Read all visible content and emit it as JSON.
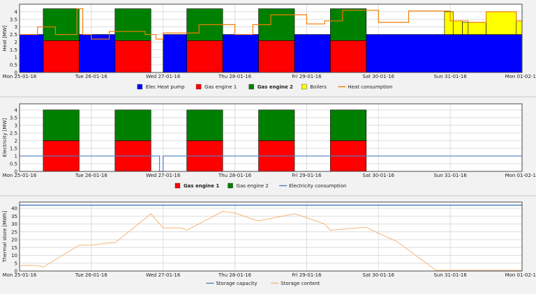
{
  "colors": {
    "elec_heat_pump": "#0000ff",
    "gas_engine_1": "#ff0000",
    "gas_engine_2": "#008000",
    "boilers": "#ffff00",
    "heat_consumption": "#f07d00",
    "electricity_consumption": "#4f7fbf",
    "storage_capacity": "#4f7fbf",
    "storage_content": "#f5b57a"
  },
  "chart_data": [
    {
      "type": "area",
      "ylabel": "Heat [MW]",
      "ylim": [
        0,
        4.5
      ],
      "yticks": [
        "0",
        "0.5",
        "1",
        "1.5",
        "2",
        "2.5",
        "3",
        "3.5",
        "4"
      ],
      "xlim": [
        0,
        7
      ],
      "xticks": [
        {
          "x": 0,
          "label": "Mon 25-01-16"
        },
        {
          "x": 1,
          "label": "Tue 26-01-16"
        },
        {
          "x": 2,
          "label": "Wed 27-01-16"
        },
        {
          "x": 3,
          "label": "Thu 28-01-16"
        },
        {
          "x": 4,
          "label": "Fri 29-01-16"
        },
        {
          "x": 5,
          "label": "Sat 30-01-16"
        },
        {
          "x": 6,
          "label": "Sun 31-01-16"
        },
        {
          "x": 7,
          "label": "Mon 01-02-16"
        }
      ],
      "grid": true,
      "legend_position": "bottom",
      "legend": [
        {
          "label": "Elec Heat pump",
          "key": "elec_heat_pump",
          "marker": "square",
          "bold": false
        },
        {
          "label": "Gas engine 1",
          "key": "gas_engine_1",
          "marker": "square",
          "bold": false
        },
        {
          "label": "Gas engine 2",
          "key": "gas_engine_2",
          "marker": "square",
          "bold": true
        },
        {
          "label": "Boilers",
          "key": "boilers",
          "marker": "square",
          "bold": false
        },
        {
          "label": "Heat consumption",
          "key": "heat_consumption",
          "marker": "line",
          "bold": false
        }
      ],
      "blocks": [
        {
          "series": "Elec Heat pump",
          "color": "elec_heat_pump",
          "x0": 0,
          "x1": 0.33,
          "y0": 0,
          "y1": 2.5
        },
        {
          "series": "Elec Heat pump",
          "color": "elec_heat_pump",
          "x0": 0.83,
          "x1": 1.33,
          "y0": 0,
          "y1": 2.5
        },
        {
          "series": "Elec Heat pump",
          "color": "elec_heat_pump",
          "x0": 2.0,
          "x1": 2.33,
          "y0": 0,
          "y1": 2.5
        },
        {
          "series": "Elec Heat pump",
          "color": "elec_heat_pump",
          "x0": 2.83,
          "x1": 3.33,
          "y0": 0,
          "y1": 2.5
        },
        {
          "series": "Elec Heat pump",
          "color": "elec_heat_pump",
          "x0": 3.83,
          "x1": 4.33,
          "y0": 0,
          "y1": 2.5
        },
        {
          "series": "Elec Heat pump",
          "color": "elec_heat_pump",
          "x0": 4.83,
          "x1": 7.0,
          "y0": 0,
          "y1": 2.5
        },
        {
          "series": "Gas engine 1",
          "color": "gas_engine_1",
          "x0": 0.33,
          "x1": 0.83,
          "y0": 0,
          "y1": 2.1
        },
        {
          "series": "Gas engine 1",
          "color": "gas_engine_1",
          "x0": 1.33,
          "x1": 1.83,
          "y0": 0,
          "y1": 2.1
        },
        {
          "series": "Gas engine 1",
          "color": "gas_engine_1",
          "x0": 2.33,
          "x1": 2.83,
          "y0": 0,
          "y1": 2.1
        },
        {
          "series": "Gas engine 1",
          "color": "gas_engine_1",
          "x0": 3.33,
          "x1": 3.83,
          "y0": 0,
          "y1": 2.1
        },
        {
          "series": "Gas engine 1",
          "color": "gas_engine_1",
          "x0": 4.33,
          "x1": 4.83,
          "y0": 0,
          "y1": 2.1
        },
        {
          "series": "Gas engine 2",
          "color": "gas_engine_2",
          "x0": 0.33,
          "x1": 0.83,
          "y0": 2.1,
          "y1": 4.2
        },
        {
          "series": "Gas engine 2",
          "color": "gas_engine_2",
          "x0": 1.33,
          "x1": 1.83,
          "y0": 2.1,
          "y1": 4.2
        },
        {
          "series": "Gas engine 2",
          "color": "gas_engine_2",
          "x0": 2.33,
          "x1": 2.83,
          "y0": 2.1,
          "y1": 4.2
        },
        {
          "series": "Gas engine 2",
          "color": "gas_engine_2",
          "x0": 3.33,
          "x1": 3.83,
          "y0": 2.1,
          "y1": 4.2
        },
        {
          "series": "Gas engine 2",
          "color": "gas_engine_2",
          "x0": 4.33,
          "x1": 4.83,
          "y0": 2.1,
          "y1": 4.2
        },
        {
          "series": "Boilers",
          "color": "boilers",
          "x0": 5.92,
          "x1": 6.04,
          "y0": 2.5,
          "y1": 4.0
        },
        {
          "series": "Boilers",
          "color": "boilers",
          "x0": 6.04,
          "x1": 6.17,
          "y0": 2.5,
          "y1": 3.4
        },
        {
          "series": "Boilers",
          "color": "boilers",
          "x0": 6.17,
          "x1": 6.25,
          "y0": 2.5,
          "y1": 3.3
        },
        {
          "series": "Boilers",
          "color": "boilers",
          "x0": 6.25,
          "x1": 6.5,
          "y0": 2.5,
          "y1": 3.3
        },
        {
          "series": "Boilers",
          "color": "boilers",
          "x0": 6.5,
          "x1": 6.92,
          "y0": 2.5,
          "y1": 4.0
        },
        {
          "series": "Boilers",
          "color": "boilers",
          "x0": 6.92,
          "x1": 7.0,
          "y0": 2.5,
          "y1": 3.4
        }
      ],
      "lines": [
        {
          "series": "Heat consumption",
          "color": "heat_consumption",
          "width": 1.2,
          "step": true,
          "points": [
            [
              0,
              2.5
            ],
            [
              0.25,
              3.0
            ],
            [
              0.5,
              2.5
            ],
            [
              0.8,
              4.2
            ],
            [
              0.83,
              4.2
            ],
            [
              0.88,
              2.5
            ],
            [
              1.0,
              2.2
            ],
            [
              1.25,
              2.7
            ],
            [
              1.75,
              2.5
            ],
            [
              1.9,
              2.2
            ],
            [
              2.0,
              2.6
            ],
            [
              2.25,
              2.6
            ],
            [
              2.5,
              3.15
            ],
            [
              3.0,
              2.5
            ],
            [
              3.25,
              3.15
            ],
            [
              3.5,
              3.8
            ],
            [
              4.0,
              3.2
            ],
            [
              4.25,
              3.4
            ],
            [
              4.5,
              4.1
            ],
            [
              5.0,
              3.3
            ],
            [
              5.42,
              4.05
            ],
            [
              6.0,
              3.4
            ],
            [
              6.25,
              3.3
            ],
            [
              6.5,
              4.0
            ],
            [
              6.92,
              3.4
            ],
            [
              7.0,
              3.4
            ]
          ]
        }
      ]
    },
    {
      "type": "area",
      "ylabel": "Electricity [MW]",
      "ylim": [
        0,
        4.4
      ],
      "yticks": [
        "0",
        "0.5",
        "1",
        "1.5",
        "2",
        "2.5",
        "3",
        "3.5",
        "4"
      ],
      "xlim": [
        0,
        7
      ],
      "xticks": [
        {
          "x": 0,
          "label": "Mon 25-01-16"
        },
        {
          "x": 1,
          "label": "Tue 26-01-16"
        },
        {
          "x": 2,
          "label": "Wed 27-01-16"
        },
        {
          "x": 3,
          "label": "Thu 28-01-16"
        },
        {
          "x": 4,
          "label": "Fri 29-01-16"
        },
        {
          "x": 5,
          "label": "Sat 30-01-16"
        },
        {
          "x": 6,
          "label": "Sun 31-01-16"
        },
        {
          "x": 7,
          "label": "Mon 01-02-16"
        }
      ],
      "grid": true,
      "legend_position": "bottom",
      "legend": [
        {
          "label": "Gas engine 1",
          "key": "gas_engine_1",
          "marker": "square",
          "bold": true
        },
        {
          "label": "Gas engine 2",
          "key": "gas_engine_2",
          "marker": "square",
          "bold": false
        },
        {
          "label": "Electricity consumption",
          "key": "electricity_consumption",
          "marker": "line",
          "bold": false
        }
      ],
      "blocks": [
        {
          "series": "Gas engine 1",
          "color": "gas_engine_1",
          "x0": 0.33,
          "x1": 0.83,
          "y0": 0,
          "y1": 2.0
        },
        {
          "series": "Gas engine 1",
          "color": "gas_engine_1",
          "x0": 1.33,
          "x1": 1.83,
          "y0": 0,
          "y1": 2.0
        },
        {
          "series": "Gas engine 1",
          "color": "gas_engine_1",
          "x0": 2.33,
          "x1": 2.83,
          "y0": 0,
          "y1": 2.0
        },
        {
          "series": "Gas engine 1",
          "color": "gas_engine_1",
          "x0": 3.33,
          "x1": 3.83,
          "y0": 0,
          "y1": 2.0
        },
        {
          "series": "Gas engine 1",
          "color": "gas_engine_1",
          "x0": 4.33,
          "x1": 4.83,
          "y0": 0,
          "y1": 2.0
        },
        {
          "series": "Gas engine 2",
          "color": "gas_engine_2",
          "x0": 0.33,
          "x1": 0.83,
          "y0": 2.0,
          "y1": 4.0
        },
        {
          "series": "Gas engine 2",
          "color": "gas_engine_2",
          "x0": 1.33,
          "x1": 1.83,
          "y0": 2.0,
          "y1": 4.0
        },
        {
          "series": "Gas engine 2",
          "color": "gas_engine_2",
          "x0": 2.33,
          "x1": 2.83,
          "y0": 2.0,
          "y1": 4.0
        },
        {
          "series": "Gas engine 2",
          "color": "gas_engine_2",
          "x0": 3.33,
          "x1": 3.83,
          "y0": 2.0,
          "y1": 4.0
        },
        {
          "series": "Gas engine 2",
          "color": "gas_engine_2",
          "x0": 4.33,
          "x1": 4.83,
          "y0": 2.0,
          "y1": 4.0
        }
      ],
      "lines": [
        {
          "series": "Electricity consumption",
          "color": "electricity_consumption",
          "width": 1.2,
          "step": true,
          "points": [
            [
              0,
              1.0
            ],
            [
              1.95,
              0
            ],
            [
              2.0,
              1.0
            ],
            [
              7.0,
              1.0
            ]
          ]
        }
      ]
    },
    {
      "type": "line",
      "ylabel": "Thermal store [MWh]",
      "ylim": [
        0,
        44
      ],
      "yticks": [
        "0",
        "5",
        "10",
        "15",
        "20",
        "25",
        "30",
        "35",
        "40"
      ],
      "xlim": [
        0,
        7
      ],
      "xticks": [
        {
          "x": 0,
          "label": "Mon 25-01-16"
        },
        {
          "x": 1,
          "label": "Tue 26-01-16"
        },
        {
          "x": 2,
          "label": "Wed 27-01-16"
        },
        {
          "x": 3,
          "label": "Thu 28-01-16"
        },
        {
          "x": 4,
          "label": "Fri 29-01-16"
        },
        {
          "x": 5,
          "label": "Sat 30-01-16"
        },
        {
          "x": 6,
          "label": "Sun 31-01-16"
        },
        {
          "x": 7,
          "label": "Mon 01-02-16"
        }
      ],
      "grid": true,
      "legend_position": "bottom",
      "legend": [
        {
          "label": "Storage capacity",
          "key": "storage_capacity",
          "marker": "line",
          "bold": false
        },
        {
          "label": "Storage content",
          "key": "storage_content",
          "marker": "line",
          "bold": false
        }
      ],
      "blocks": [],
      "lines": [
        {
          "series": "Storage capacity",
          "color": "storage_capacity",
          "width": 1.6,
          "step": false,
          "points": [
            [
              0,
              42
            ],
            [
              7,
              42
            ]
          ]
        },
        {
          "series": "Storage content",
          "color": "storage_content",
          "width": 1.0,
          "step": false,
          "points": [
            [
              0,
              3.5
            ],
            [
              0.25,
              3.5
            ],
            [
              0.33,
              2.5
            ],
            [
              0.83,
              16.5
            ],
            [
              1.0,
              16.5
            ],
            [
              1.25,
              18
            ],
            [
              1.33,
              18
            ],
            [
              1.83,
              36.5
            ],
            [
              2.0,
              27.5
            ],
            [
              2.25,
              27.5
            ],
            [
              2.33,
              26
            ],
            [
              2.83,
              38
            ],
            [
              3.0,
              37
            ],
            [
              3.25,
              33
            ],
            [
              3.33,
              32
            ],
            [
              3.83,
              36.5
            ],
            [
              4.0,
              34
            ],
            [
              4.25,
              30
            ],
            [
              4.33,
              26
            ],
            [
              4.83,
              28
            ],
            [
              5.0,
              24
            ],
            [
              5.25,
              19
            ],
            [
              5.8,
              0.5
            ],
            [
              7.0,
              0.5
            ]
          ]
        }
      ]
    }
  ]
}
